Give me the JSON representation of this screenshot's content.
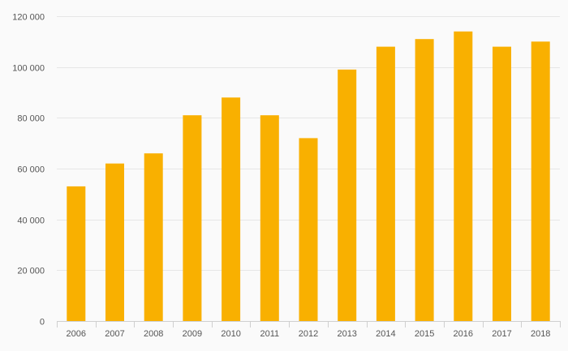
{
  "chart_data": {
    "type": "bar",
    "title": "",
    "xlabel": "",
    "ylabel": "",
    "categories": [
      "2006",
      "2007",
      "2008",
      "2009",
      "2010",
      "2011",
      "2012",
      "2013",
      "2014",
      "2015",
      "2016",
      "2017",
      "2018"
    ],
    "values": [
      53000,
      62000,
      66000,
      81000,
      88000,
      81000,
      72000,
      99000,
      108000,
      111000,
      114000,
      108000,
      110000
    ],
    "ylim": [
      0,
      120000
    ],
    "yticks": [
      0,
      20000,
      40000,
      60000,
      80000,
      100000,
      120000
    ],
    "ytick_labels": [
      "0",
      "20 000",
      "40 000",
      "60 000",
      "80 000",
      "100 000",
      "120 000"
    ],
    "grid": true,
    "legend": "none",
    "bar_color": "#f9b000",
    "background_color": "#fafafa",
    "grid_color": "#e6e6e6"
  }
}
